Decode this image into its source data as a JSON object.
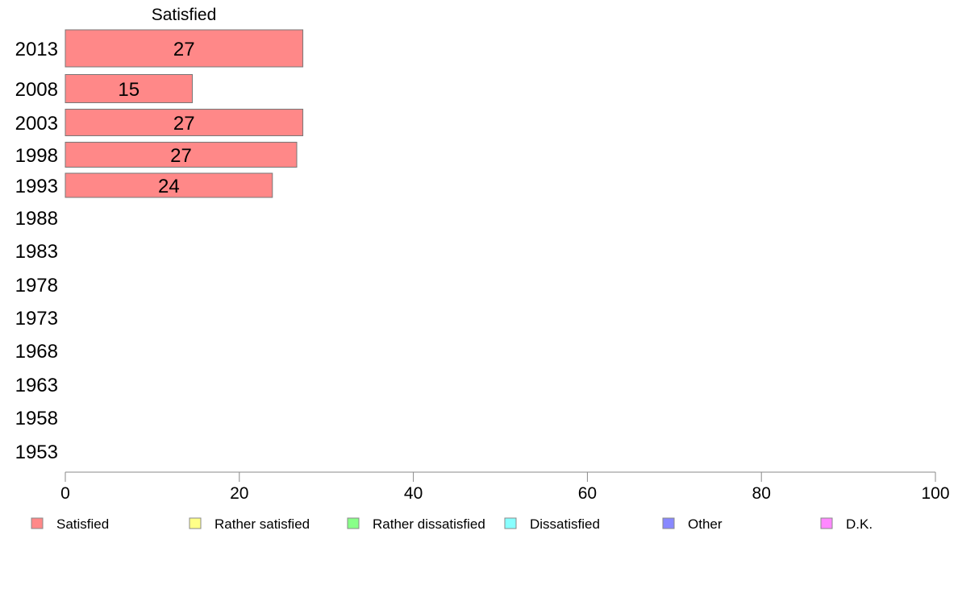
{
  "chart_data": {
    "type": "bar",
    "orientation": "horizontal",
    "title": "",
    "series_title": "Satisfied",
    "categories": [
      "2013",
      "2008",
      "2003",
      "1998",
      "1993",
      "1988",
      "1983",
      "1978",
      "1973",
      "1968",
      "1963",
      "1958",
      "1953"
    ],
    "series": [
      {
        "name": "Satisfied",
        "color": "#ff8888",
        "values": [
          27.3,
          14.6,
          27.3,
          26.6,
          23.8,
          null,
          null,
          null,
          null,
          null,
          null,
          null,
          null
        ],
        "labels": [
          "27",
          "15",
          "27",
          "27",
          "24",
          "",
          "",
          "",
          "",
          "",
          "",
          "",
          ""
        ]
      }
    ],
    "xlim": [
      0,
      100
    ],
    "xticks": [
      0,
      20,
      40,
      60,
      80,
      100
    ],
    "grid": false,
    "legend_position": "bottom",
    "legend": [
      {
        "name": "Satisfied",
        "color": "#ff8888"
      },
      {
        "name": "Rather satisfied",
        "color": "#ffff88"
      },
      {
        "name": "Rather dissatisfied",
        "color": "#88ff88"
      },
      {
        "name": "Dissatisfied",
        "color": "#88ffff"
      },
      {
        "name": "Other",
        "color": "#8888ff"
      },
      {
        "name": "D.K.",
        "color": "#ff88ff"
      }
    ]
  }
}
